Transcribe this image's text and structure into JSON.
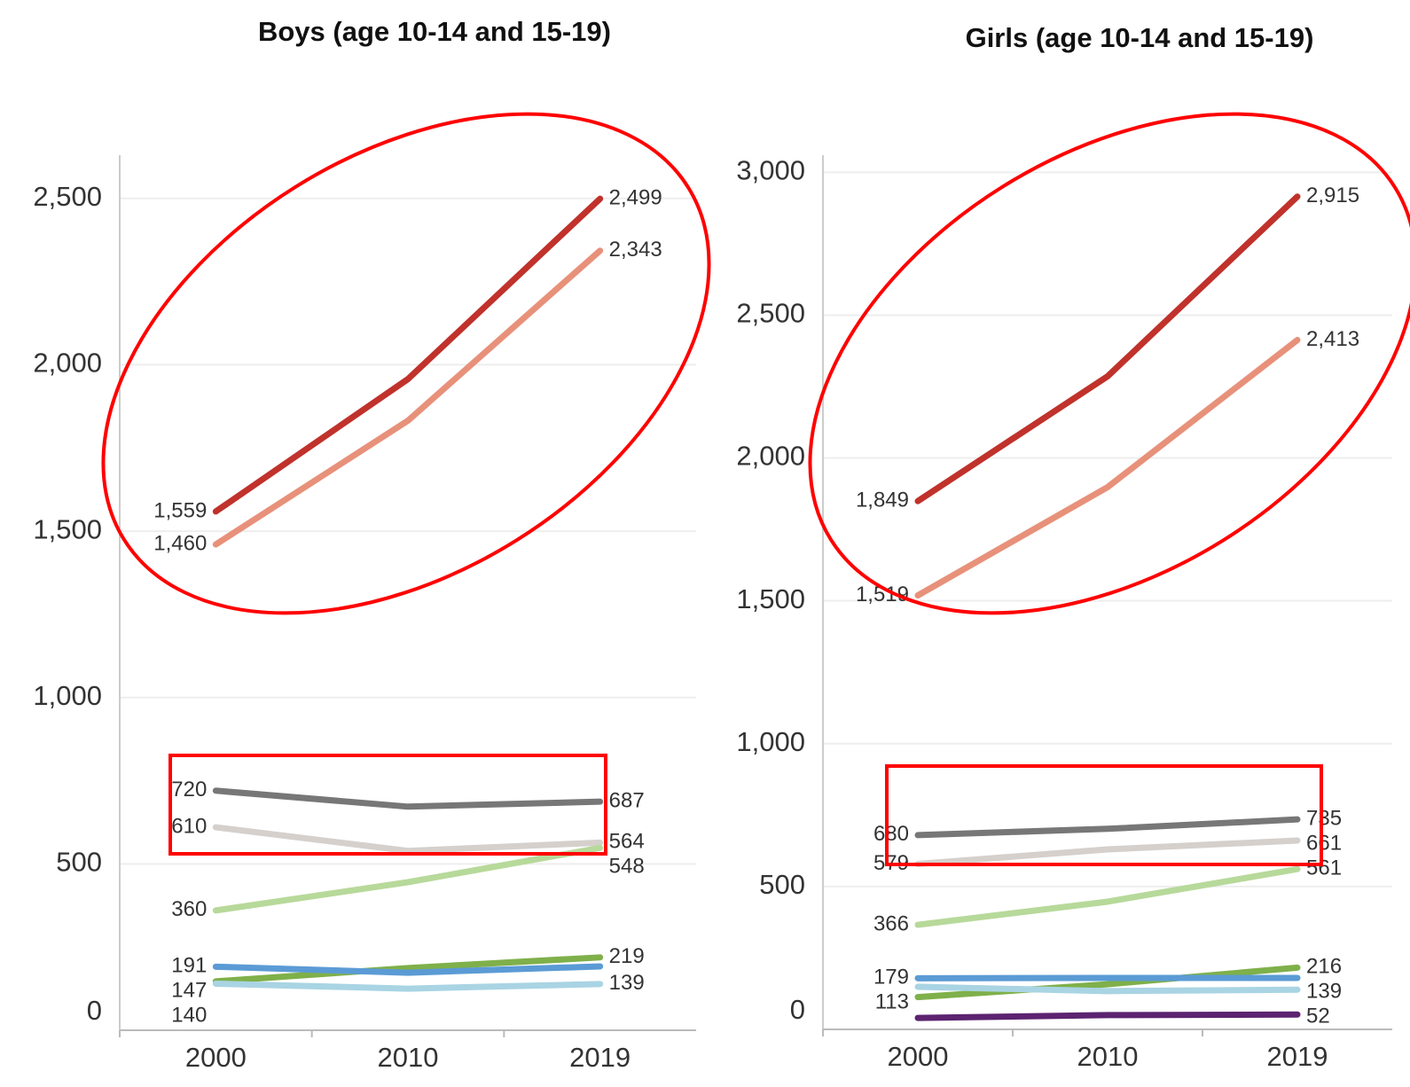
{
  "chart_data": [
    {
      "type": "line",
      "title": "Boys (age 10-14 and 15-19)",
      "categories": [
        "2000",
        "2010",
        "2019"
      ],
      "ylim": [
        0,
        2630
      ],
      "yticks": [
        0,
        500,
        {
          "value": 1000,
          "label": "1,000"
        },
        {
          "value": 1500,
          "label": "1,500"
        },
        {
          "value": 2000,
          "label": "2,000"
        },
        {
          "value": 2500,
          "label": "2,500"
        }
      ],
      "grid": true,
      "series": [
        {
          "color": "#c0322b",
          "values": [
            1559,
            1957,
            2499
          ],
          "value_labels": [
            "1,559",
            null,
            "2,499"
          ]
        },
        {
          "color": "#e8917a",
          "values": [
            1460,
            1832,
            2343
          ],
          "value_labels": [
            "1,460",
            null,
            "2,343"
          ]
        },
        {
          "color": "#777777",
          "values": [
            720,
            672,
            687
          ],
          "value_labels": [
            "720",
            null,
            "687"
          ]
        },
        {
          "color": "#d5d0cc",
          "values": [
            610,
            539,
            564
          ],
          "value_labels": [
            "610",
            null,
            "564"
          ]
        },
        {
          "color": "#b7d99a",
          "values": [
            360,
            445,
            548
          ],
          "value_labels": [
            "360",
            null,
            "548"
          ]
        },
        {
          "color": "#7fb04a",
          "values": [
            147,
            187,
            219
          ],
          "value_labels": [
            "147",
            null,
            "219"
          ]
        },
        {
          "color": "#5b9bd5",
          "values": [
            191,
            173,
            192
          ],
          "value_labels": [
            "191",
            null,
            null
          ]
        },
        {
          "color": "#a9d4e3",
          "values": [
            140,
            125,
            139
          ],
          "value_labels": [
            "140",
            null,
            "139"
          ]
        }
      ]
    },
    {
      "type": "line",
      "title": "Girls (age 10-14 and 15-19)",
      "categories": [
        "2000",
        "2010",
        "2019"
      ],
      "ylim": [
        0,
        3060
      ],
      "yticks": [
        0,
        500,
        {
          "value": 1000,
          "label": "1,000"
        },
        {
          "value": 1500,
          "label": "1,500"
        },
        {
          "value": 2000,
          "label": "2,000"
        },
        {
          "value": 2500,
          "label": "2,500"
        },
        {
          "value": 3000,
          "label": "3,000"
        }
      ],
      "grid": true,
      "series": [
        {
          "color": "#c0322b",
          "values": [
            1849,
            2286,
            2915
          ],
          "value_labels": [
            "1,849",
            null,
            "2,915"
          ]
        },
        {
          "color": "#e8917a",
          "values": [
            1519,
            1898,
            2413
          ],
          "value_labels": [
            "1,519",
            null,
            "2,413"
          ]
        },
        {
          "color": "#777777",
          "values": [
            680,
            702,
            735
          ],
          "value_labels": [
            "680",
            null,
            "735"
          ]
        },
        {
          "color": "#d5d0cc",
          "values": [
            579,
            630,
            661
          ],
          "value_labels": [
            "579",
            null,
            "661"
          ]
        },
        {
          "color": "#b7d99a",
          "values": [
            366,
            447,
            561
          ],
          "value_labels": [
            "366",
            null,
            "561"
          ]
        },
        {
          "color": "#7fb04a",
          "values": [
            113,
            158,
            216
          ],
          "value_labels": [
            "113",
            null,
            "216"
          ]
        },
        {
          "color": "#5b9bd5",
          "values": [
            179,
            180,
            180
          ],
          "value_labels": [
            "179",
            null,
            null
          ]
        },
        {
          "color": "#a9d4e3",
          "values": [
            149,
            134,
            139
          ],
          "value_labels": [
            null,
            null,
            "139"
          ]
        },
        {
          "color": "#5c2370",
          "values": [
            40,
            50,
            52
          ],
          "value_labels": [
            null,
            null,
            "52"
          ]
        }
      ]
    }
  ]
}
